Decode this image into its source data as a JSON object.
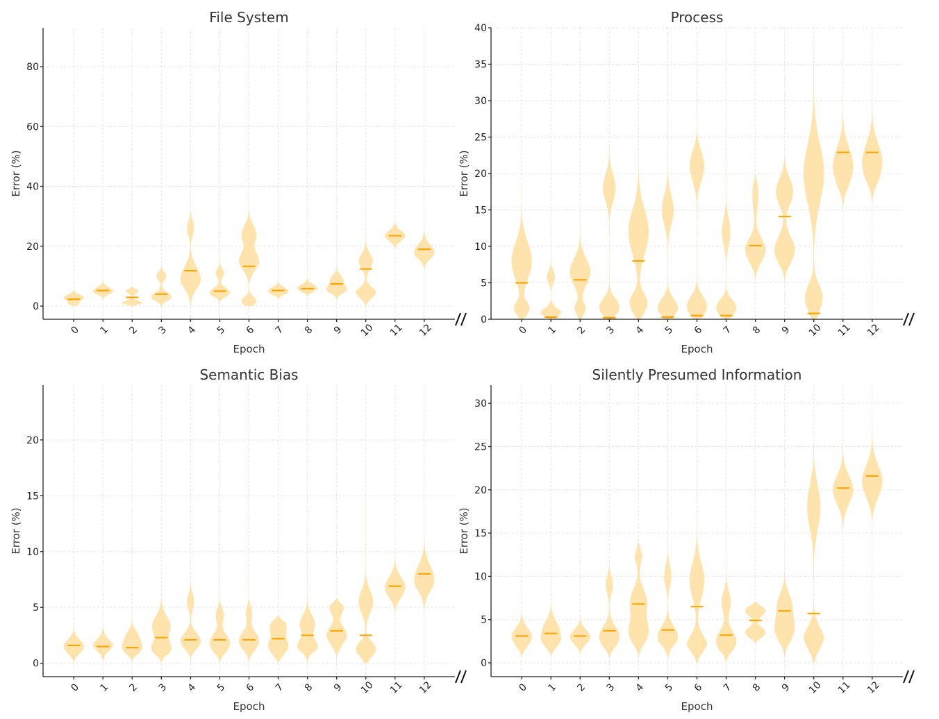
{
  "colors": {
    "violin_fill": "#ffe3ad",
    "median": "#ffa500"
  },
  "chart_data": [
    {
      "type": "violin",
      "title": "File System",
      "xlabel": "Epoch",
      "ylabel": "Error (%)",
      "ylim": [
        -4.4,
        93
      ],
      "yticks": [
        0,
        20,
        40,
        60,
        80
      ],
      "categories": [
        "0",
        "1",
        "2",
        "3",
        "4",
        "5",
        "6",
        "7",
        "8",
        "9",
        "10",
        "11",
        "12"
      ],
      "violins": [
        {
          "median": 2.3,
          "range": [
            0,
            8
          ],
          "modes": [
            [
              2.8,
              1,
              1
            ],
            [
              0.5,
              0.6,
              0.6
            ]
          ]
        },
        {
          "median": 5.2,
          "range": [
            2,
            19
          ],
          "modes": [
            [
              5,
              1.2,
              1
            ]
          ]
        },
        {
          "median": 2.9,
          "range": [
            0,
            6.5
          ],
          "modes": [
            [
              5,
              0.8,
              0.6
            ],
            [
              1,
              0.8,
              1
            ]
          ]
        },
        {
          "median": 4.0,
          "range": [
            0,
            18
          ],
          "modes": [
            [
              3,
              1.5,
              1
            ],
            [
              10,
              1.3,
              0.5
            ]
          ]
        },
        {
          "median": 11.8,
          "range": [
            0,
            60
          ],
          "modes": [
            [
              9,
              4,
              1
            ],
            [
              26,
              2.5,
              0.35
            ]
          ]
        },
        {
          "median": 5.0,
          "range": [
            1,
            21
          ],
          "modes": [
            [
              4.5,
              1.5,
              1
            ],
            [
              11,
              1.5,
              0.4
            ]
          ]
        },
        {
          "median": 13.3,
          "range": [
            0,
            39
          ],
          "modes": [
            [
              1,
              1.5,
              0.9
            ],
            [
              15,
              3,
              0.55
            ],
            [
              24,
              3,
              0.4
            ]
          ]
        },
        {
          "median": 5.2,
          "range": [
            2,
            16
          ],
          "modes": [
            [
              5,
              1.2,
              1
            ]
          ]
        },
        {
          "median": 5.8,
          "range": [
            3,
            17
          ],
          "modes": [
            [
              6,
              1.2,
              1
            ]
          ]
        },
        {
          "median": 7.4,
          "range": [
            2,
            23
          ],
          "modes": [
            [
              5.5,
              1.5,
              1
            ],
            [
              9,
              1.5,
              0.6
            ]
          ]
        },
        {
          "median": 12.4,
          "range": [
            0,
            41
          ],
          "modes": [
            [
              4,
              2,
              1
            ],
            [
              15,
              2.5,
              0.6
            ]
          ]
        },
        {
          "median": 23.5,
          "range": [
            18,
            30
          ],
          "modes": [
            [
              23.5,
              1.7,
              1
            ]
          ]
        },
        {
          "median": 19.0,
          "range": [
            12,
            48
          ],
          "modes": [
            [
              18,
              2.5,
              1
            ]
          ]
        }
      ]
    },
    {
      "type": "violin",
      "title": "Process",
      "xlabel": "Epoch",
      "ylabel": "Error (%)",
      "ylim": [
        0,
        40
      ],
      "yticks": [
        0,
        5,
        10,
        15,
        20,
        25,
        30,
        35,
        40
      ],
      "categories": [
        "0",
        "1",
        "2",
        "3",
        "4",
        "5",
        "6",
        "7",
        "8",
        "9",
        "10",
        "11",
        "12"
      ],
      "violins": [
        {
          "median": 5.0,
          "range": [
            0,
            19
          ],
          "modes": [
            [
              1,
              1,
              0.7
            ],
            [
              8,
              2.5,
              0.6
            ]
          ]
        },
        {
          "median": 0.3,
          "range": [
            0,
            9
          ],
          "modes": [
            [
              0.5,
              0.8,
              1
            ],
            [
              5.8,
              0.8,
              0.3
            ]
          ]
        },
        {
          "median": 5.4,
          "range": [
            0,
            15
          ],
          "modes": [
            [
              1,
              1,
              0.6
            ],
            [
              6.5,
              1.8,
              0.85
            ]
          ]
        },
        {
          "median": 0.2,
          "range": [
            0,
            25
          ],
          "modes": [
            [
              1,
              1.3,
              1
            ],
            [
              18,
              1.8,
              0.35
            ]
          ]
        },
        {
          "median": 8.0,
          "range": [
            0,
            29
          ],
          "modes": [
            [
              1.5,
              1.5,
              0.9
            ],
            [
              12,
              3,
              0.65
            ]
          ]
        },
        {
          "median": 0.3,
          "range": [
            0,
            29
          ],
          "modes": [
            [
              1,
              1.3,
              1
            ],
            [
              15,
              2,
              0.3
            ]
          ]
        },
        {
          "median": 0.5,
          "range": [
            0,
            27.3
          ],
          "modes": [
            [
              1,
              1.5,
              1
            ],
            [
              21,
              2,
              0.4
            ]
          ]
        },
        {
          "median": 0.5,
          "range": [
            0,
            22
          ],
          "modes": [
            [
              1,
              1.2,
              1
            ],
            [
              12,
              1.8,
              0.25
            ]
          ]
        },
        {
          "median": 10.1,
          "range": [
            5,
            20
          ],
          "modes": [
            [
              9.5,
              1.6,
              1
            ],
            [
              17,
              2,
              0.3
            ]
          ]
        },
        {
          "median": 14.1,
          "range": [
            5,
            23.5
          ],
          "modes": [
            [
              9.5,
              1.8,
              1
            ],
            [
              17.5,
              1.8,
              0.85
            ]
          ]
        },
        {
          "median": 0.8,
          "range": [
            0,
            39.5
          ],
          "modes": [
            [
              2,
              2,
              0.7
            ],
            [
              20,
              4,
              0.5
            ]
          ]
        },
        {
          "median": 22.9,
          "range": [
            15,
            39
          ],
          "modes": [
            [
              21,
              2.5,
              1
            ]
          ]
        },
        {
          "median": 22.9,
          "range": [
            16,
            38
          ],
          "modes": [
            [
              21.5,
              2.5,
              1
            ]
          ]
        }
      ]
    },
    {
      "type": "violin",
      "title": "Semantic Bias",
      "xlabel": "Epoch",
      "ylabel": "Error (%)",
      "ylim": [
        -1.2,
        24.9
      ],
      "yticks": [
        0,
        5,
        10,
        15,
        20
      ],
      "categories": [
        "0",
        "1",
        "2",
        "3",
        "4",
        "5",
        "6",
        "7",
        "8",
        "9",
        "10",
        "11",
        "12"
      ],
      "violins": [
        {
          "median": 1.6,
          "range": [
            0,
            5
          ],
          "modes": [
            [
              1.5,
              0.6,
              1
            ]
          ]
        },
        {
          "median": 1.5,
          "range": [
            0.3,
            11
          ],
          "modes": [
            [
              1.5,
              0.6,
              1
            ]
          ]
        },
        {
          "median": 1.4,
          "range": [
            0.2,
            5
          ],
          "modes": [
            [
              1.4,
              0.6,
              1
            ],
            [
              2.5,
              0.5,
              0.5
            ]
          ]
        },
        {
          "median": 2.3,
          "range": [
            0,
            6.5
          ],
          "modes": [
            [
              1.3,
              0.6,
              0.8
            ],
            [
              3.3,
              0.9,
              0.8
            ]
          ]
        },
        {
          "median": 2.1,
          "range": [
            0,
            9.5
          ],
          "modes": [
            [
              2,
              0.7,
              1
            ],
            [
              5.5,
              0.7,
              0.35
            ]
          ]
        },
        {
          "median": 2.1,
          "range": [
            0,
            7
          ],
          "modes": [
            [
              1.8,
              0.8,
              1
            ],
            [
              4.3,
              0.6,
              0.4
            ]
          ]
        },
        {
          "median": 2.1,
          "range": [
            0,
            8.5
          ],
          "modes": [
            [
              2,
              0.8,
              1
            ],
            [
              4.5,
              0.6,
              0.3
            ]
          ]
        },
        {
          "median": 2.2,
          "range": [
            0,
            4.2
          ],
          "modes": [
            [
              1.5,
              0.7,
              1
            ],
            [
              3.3,
              0.7,
              0.8
            ]
          ]
        },
        {
          "median": 2.5,
          "range": [
            0,
            9.5
          ],
          "modes": [
            [
              1.5,
              0.6,
              0.9
            ],
            [
              3.5,
              0.8,
              0.7
            ]
          ]
        },
        {
          "median": 2.9,
          "range": [
            0.3,
            5.8
          ],
          "modes": [
            [
              2.5,
              0.8,
              1
            ],
            [
              5,
              0.6,
              0.7
            ]
          ]
        },
        {
          "median": 2.5,
          "range": [
            0,
            15
          ],
          "modes": [
            [
              1,
              0.7,
              1
            ],
            [
              5.5,
              1,
              0.5
            ]
          ]
        },
        {
          "median": 6.9,
          "range": [
            4.2,
            15.5
          ],
          "modes": [
            [
              6.8,
              0.9,
              1
            ]
          ]
        },
        {
          "median": 8.0,
          "range": [
            4.7,
            22
          ],
          "modes": [
            [
              7.5,
              1.2,
              1
            ]
          ]
        }
      ]
    },
    {
      "type": "violin",
      "title": "Silently Presumed Information",
      "xlabel": "Epoch",
      "ylabel": "Error (%)",
      "ylim": [
        -1.6,
        32.1
      ],
      "yticks": [
        0,
        5,
        10,
        15,
        20,
        25,
        30
      ],
      "categories": [
        "0",
        "1",
        "2",
        "3",
        "4",
        "5",
        "6",
        "7",
        "8",
        "9",
        "10",
        "11",
        "12"
      ],
      "violins": [
        {
          "median": 3.1,
          "range": [
            0.5,
            8.5
          ],
          "modes": [
            [
              3,
              1,
              1
            ]
          ]
        },
        {
          "median": 3.4,
          "range": [
            0.5,
            9
          ],
          "modes": [
            [
              2.5,
              0.8,
              0.9
            ],
            [
              4,
              1,
              0.9
            ]
          ]
        },
        {
          "median": 3.1,
          "range": [
            1,
            6.2
          ],
          "modes": [
            [
              3,
              0.8,
              1
            ]
          ]
        },
        {
          "median": 3.7,
          "range": [
            0.5,
            12
          ],
          "modes": [
            [
              3,
              1.2,
              1
            ],
            [
              9,
              1,
              0.35
            ]
          ]
        },
        {
          "median": 6.8,
          "range": [
            0.5,
            14
          ],
          "modes": [
            [
              3.5,
              1.3,
              0.9
            ],
            [
              7,
              1.5,
              0.8
            ],
            [
              12.5,
              1,
              0.35
            ]
          ]
        },
        {
          "median": 3.8,
          "range": [
            0.5,
            16
          ],
          "modes": [
            [
              3,
              1.2,
              1
            ],
            [
              10,
              1.2,
              0.35
            ]
          ]
        },
        {
          "median": 6.5,
          "range": [
            0,
            17
          ],
          "modes": [
            [
              2,
              1.2,
              0.9
            ],
            [
              9.5,
              2,
              0.65
            ]
          ]
        },
        {
          "median": 3.2,
          "range": [
            0,
            12
          ],
          "modes": [
            [
              2.5,
              1.2,
              1
            ],
            [
              7,
              1.2,
              0.45
            ]
          ]
        },
        {
          "median": 4.9,
          "range": [
            2.2,
            7.1
          ],
          "modes": [
            [
              3.5,
              0.6,
              0.8
            ],
            [
              6,
              0.6,
              0.8
            ]
          ]
        },
        {
          "median": 6.0,
          "range": [
            0.5,
            15.5
          ],
          "modes": [
            [
              4,
              1.5,
              1
            ],
            [
              7,
              1.2,
              0.6
            ]
          ]
        },
        {
          "median": 5.7,
          "range": [
            0,
            24.7
          ],
          "modes": [
            [
              2.5,
              1.5,
              1
            ],
            [
              18,
              2.5,
              0.6
            ]
          ]
        },
        {
          "median": 20.2,
          "range": [
            15,
            26
          ],
          "modes": [
            [
              20,
              1.6,
              1
            ]
          ]
        },
        {
          "median": 21.6,
          "range": [
            16,
            28.5
          ],
          "modes": [
            [
              21,
              1.8,
              1
            ]
          ]
        }
      ]
    }
  ]
}
